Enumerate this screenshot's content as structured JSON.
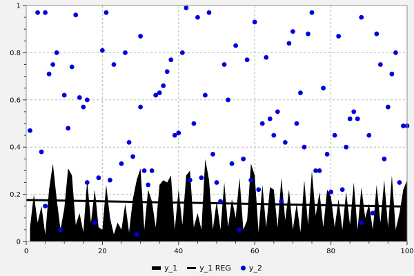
{
  "figure": {
    "background": "#f2f2f2",
    "plot_background": "#ffffff",
    "border_color": "#8c8c8c",
    "grid_color": "#b4b4b4",
    "tick_color": "#333333"
  },
  "legend": {
    "position": "bottom-center",
    "items": [
      {
        "label": "y_1",
        "marker": "area-swatch",
        "color": "#000000"
      },
      {
        "label": "y_1 REG",
        "marker": "line-swatch",
        "color": "#000000"
      },
      {
        "label": "y_2",
        "marker": "dot-swatch",
        "color": "#0000e0"
      }
    ]
  },
  "chart_data": {
    "type": "mixed",
    "title": "",
    "xlabel": "",
    "ylabel": "",
    "grid": true,
    "legend_position": "bottom",
    "x_axis": {
      "min": 0,
      "max": 100,
      "ticks": [
        0,
        20,
        40,
        60,
        80,
        100
      ],
      "tick_labels": [
        "0",
        "20",
        "40",
        "60",
        "80",
        "100"
      ],
      "minor_step": 5
    },
    "y_axis": {
      "min": 0,
      "max": 1,
      "ticks": [
        0,
        0.2,
        0.4,
        0.6,
        0.8,
        1
      ],
      "tick_labels": [
        "0",
        "0.2",
        "0.4",
        "0.6",
        "0.8",
        "1"
      ],
      "minor_step": 0.05
    },
    "series": [
      {
        "name": "y_1",
        "type": "area",
        "color": "#000000",
        "x_start": 1,
        "x_step": 1,
        "values": [
          0.06,
          0.2,
          0.08,
          0.15,
          0.03,
          0.22,
          0.33,
          0.18,
          0.05,
          0.14,
          0.31,
          0.28,
          0.07,
          0.12,
          0.04,
          0.26,
          0.08,
          0.22,
          0.06,
          0.05,
          0.24,
          0.1,
          0.03,
          0.08,
          0.05,
          0.16,
          0.04,
          0.18,
          0.26,
          0.31,
          0.05,
          0.22,
          0.17,
          0.06,
          0.24,
          0.26,
          0.25,
          0.28,
          0.05,
          0.22,
          0.07,
          0.28,
          0.3,
          0.06,
          0.12,
          0.05,
          0.35,
          0.26,
          0.05,
          0.17,
          0.05,
          0.25,
          0.06,
          0.18,
          0.1,
          0.27,
          0.05,
          0.09,
          0.33,
          0.28,
          0.04,
          0.24,
          0.06,
          0.23,
          0.22,
          0.06,
          0.27,
          0.09,
          0.22,
          0.05,
          0.16,
          0.04,
          0.26,
          0.07,
          0.3,
          0.11,
          0.21,
          0.06,
          0.22,
          0.19,
          0.06,
          0.18,
          0.05,
          0.21,
          0.07,
          0.25,
          0.05,
          0.23,
          0.1,
          0.16,
          0.05,
          0.24,
          0.08,
          0.26,
          0.06,
          0.28,
          0.05,
          0.12,
          0.22,
          0.26
        ]
      },
      {
        "name": "y_1 REG",
        "type": "line",
        "color": "#000000",
        "width": 3,
        "x": [
          0,
          100
        ],
        "y": [
          0.176,
          0.148
        ]
      },
      {
        "name": "y_2",
        "type": "scatter",
        "color": "#0000e0",
        "radius": 3.4,
        "points": [
          [
            1,
            0.47
          ],
          [
            3,
            0.97
          ],
          [
            4,
            0.38
          ],
          [
            5,
            0.15
          ],
          [
            5,
            0.97
          ],
          [
            6,
            0.71
          ],
          [
            7,
            0.75
          ],
          [
            8,
            0.8
          ],
          [
            9,
            0.05
          ],
          [
            10,
            0.62
          ],
          [
            11,
            0.48
          ],
          [
            12,
            0.74
          ],
          [
            13,
            0.96
          ],
          [
            14,
            0.61
          ],
          [
            15,
            0.57
          ],
          [
            16,
            0.6
          ],
          [
            16,
            0.25
          ],
          [
            18,
            0.08
          ],
          [
            19,
            0.27
          ],
          [
            20,
            0.81
          ],
          [
            21,
            0.97
          ],
          [
            22,
            0.26
          ],
          [
            23,
            0.75
          ],
          [
            25,
            0.33
          ],
          [
            26,
            0.8
          ],
          [
            27,
            0.42
          ],
          [
            28,
            0.36
          ],
          [
            29,
            0.03
          ],
          [
            30,
            0.57
          ],
          [
            30,
            0.87
          ],
          [
            31,
            0.3
          ],
          [
            32,
            0.24
          ],
          [
            33,
            0.3
          ],
          [
            34,
            0.62
          ],
          [
            35,
            0.63
          ],
          [
            36,
            0.66
          ],
          [
            37,
            0.72
          ],
          [
            38,
            0.77
          ],
          [
            39,
            0.45
          ],
          [
            40,
            0.46
          ],
          [
            41,
            0.8
          ],
          [
            42,
            0.99
          ],
          [
            43,
            0.26
          ],
          [
            44,
            0.5
          ],
          [
            45,
            0.95
          ],
          [
            46,
            0.27
          ],
          [
            47,
            0.62
          ],
          [
            48,
            0.97
          ],
          [
            49,
            0.37
          ],
          [
            50,
            0.25
          ],
          [
            51,
            0.17
          ],
          [
            52,
            0.75
          ],
          [
            53,
            0.6
          ],
          [
            54,
            0.33
          ],
          [
            55,
            0.83
          ],
          [
            56,
            0.05
          ],
          [
            57,
            0.35
          ],
          [
            58,
            0.77
          ],
          [
            59,
            0.26
          ],
          [
            60,
            0.93
          ],
          [
            61,
            0.22
          ],
          [
            62,
            0.5
          ],
          [
            63,
            0.78
          ],
          [
            64,
            0.52
          ],
          [
            65,
            0.45
          ],
          [
            66,
            0.55
          ],
          [
            67,
            0.17
          ],
          [
            68,
            0.42
          ],
          [
            69,
            0.84
          ],
          [
            70,
            0.89
          ],
          [
            71,
            0.5
          ],
          [
            72,
            0.63
          ],
          [
            73,
            0.4
          ],
          [
            74,
            0.88
          ],
          [
            75,
            0.97
          ],
          [
            76,
            0.3
          ],
          [
            77,
            0.3
          ],
          [
            78,
            0.65
          ],
          [
            79,
            0.37
          ],
          [
            80,
            0.21
          ],
          [
            81,
            0.45
          ],
          [
            82,
            0.87
          ],
          [
            83,
            0.22
          ],
          [
            84,
            0.4
          ],
          [
            85,
            0.52
          ],
          [
            86,
            0.55
          ],
          [
            87,
            0.52
          ],
          [
            88,
            0.95
          ],
          [
            88,
            0.08
          ],
          [
            90,
            0.45
          ],
          [
            91,
            0.12
          ],
          [
            92,
            0.88
          ],
          [
            93,
            0.75
          ],
          [
            94,
            0.35
          ],
          [
            95,
            0.57
          ],
          [
            96,
            0.71
          ],
          [
            97,
            0.8
          ],
          [
            98,
            0.25
          ],
          [
            99,
            0.49
          ],
          [
            100,
            0.49
          ]
        ]
      }
    ]
  }
}
